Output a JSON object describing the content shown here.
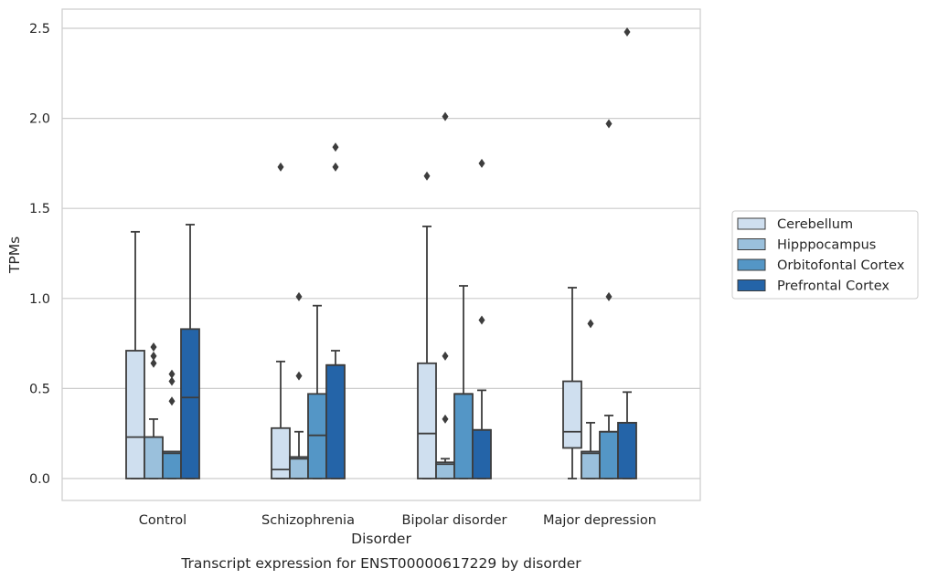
{
  "chart_data": {
    "type": "boxplot",
    "title": "",
    "caption": "Transcript expression for ENST00000617229 by disorder",
    "xlabel": "Disorder",
    "ylabel": "TPMs",
    "ylim": [
      -0.12,
      2.62
    ],
    "yticks": [
      0.0,
      0.5,
      1.0,
      1.5,
      2.0,
      2.5
    ],
    "ytick_labels": [
      "0.0",
      "0.5",
      "1.0",
      "1.5",
      "2.0",
      "2.5"
    ],
    "grid": "horizontal",
    "legend_position": "right",
    "categories": [
      "Control",
      "Schizophrenia",
      "Bipolar disorder",
      "Major depression"
    ],
    "series": [
      {
        "name": "Cerebellum",
        "color": "#cfdfef",
        "boxes": [
          {
            "whislo": 0.0,
            "q1": 0.0,
            "med": 0.23,
            "q3": 0.71,
            "whishi": 1.37,
            "fliers": []
          },
          {
            "whislo": 0.0,
            "q1": 0.0,
            "med": 0.05,
            "q3": 0.28,
            "whishi": 0.65,
            "fliers": [
              1.73
            ]
          },
          {
            "whislo": 0.0,
            "q1": 0.0,
            "med": 0.25,
            "q3": 0.64,
            "whishi": 1.4,
            "fliers": [
              1.68
            ]
          },
          {
            "whislo": 0.0,
            "q1": 0.17,
            "med": 0.26,
            "q3": 0.54,
            "whishi": 1.06,
            "fliers": []
          }
        ]
      },
      {
        "name": "Hipppocampus",
        "color": "#9ac0dc",
        "boxes": [
          {
            "whislo": 0.0,
            "q1": 0.0,
            "med": 0.23,
            "q3": 0.23,
            "whishi": 0.33,
            "fliers": [
              0.64,
              0.68,
              0.73
            ]
          },
          {
            "whislo": 0.0,
            "q1": 0.0,
            "med": 0.11,
            "q3": 0.12,
            "whishi": 0.26,
            "fliers": [
              0.57,
              1.01
            ]
          },
          {
            "whislo": 0.0,
            "q1": 0.0,
            "med": 0.08,
            "q3": 0.09,
            "whishi": 0.11,
            "fliers": [
              0.33,
              0.68,
              2.01
            ]
          },
          {
            "whislo": 0.0,
            "q1": 0.0,
            "med": 0.14,
            "q3": 0.15,
            "whishi": 0.31,
            "fliers": [
              0.86
            ]
          }
        ]
      },
      {
        "name": "Orbitofontal Cortex",
        "color": "#5496c6",
        "boxes": [
          {
            "whislo": 0.0,
            "q1": 0.0,
            "med": 0.14,
            "q3": 0.15,
            "whishi": 0.15,
            "fliers": [
              0.43,
              0.54,
              0.58
            ]
          },
          {
            "whislo": 0.0,
            "q1": 0.0,
            "med": 0.24,
            "q3": 0.47,
            "whishi": 0.96,
            "fliers": []
          },
          {
            "whislo": 0.0,
            "q1": 0.0,
            "med": 0.47,
            "q3": 0.47,
            "whishi": 1.07,
            "fliers": []
          },
          {
            "whislo": 0.0,
            "q1": 0.0,
            "med": 0.26,
            "q3": 0.26,
            "whishi": 0.35,
            "fliers": [
              1.01,
              1.97
            ]
          }
        ]
      },
      {
        "name": "Prefrontal Cortex",
        "color": "#2464a8",
        "boxes": [
          {
            "whislo": 0.0,
            "q1": 0.0,
            "med": 0.45,
            "q3": 0.83,
            "whishi": 1.41,
            "fliers": []
          },
          {
            "whislo": 0.0,
            "q1": 0.0,
            "med": 0.63,
            "q3": 0.63,
            "whishi": 0.71,
            "fliers": [
              1.73,
              1.84
            ]
          },
          {
            "whislo": 0.0,
            "q1": 0.0,
            "med": 0.27,
            "q3": 0.27,
            "whishi": 0.49,
            "fliers": [
              0.88,
              1.75
            ]
          },
          {
            "whislo": 0.0,
            "q1": 0.0,
            "med": 0.31,
            "q3": 0.31,
            "whishi": 0.48,
            "fliers": [
              2.48
            ]
          }
        ]
      }
    ]
  }
}
